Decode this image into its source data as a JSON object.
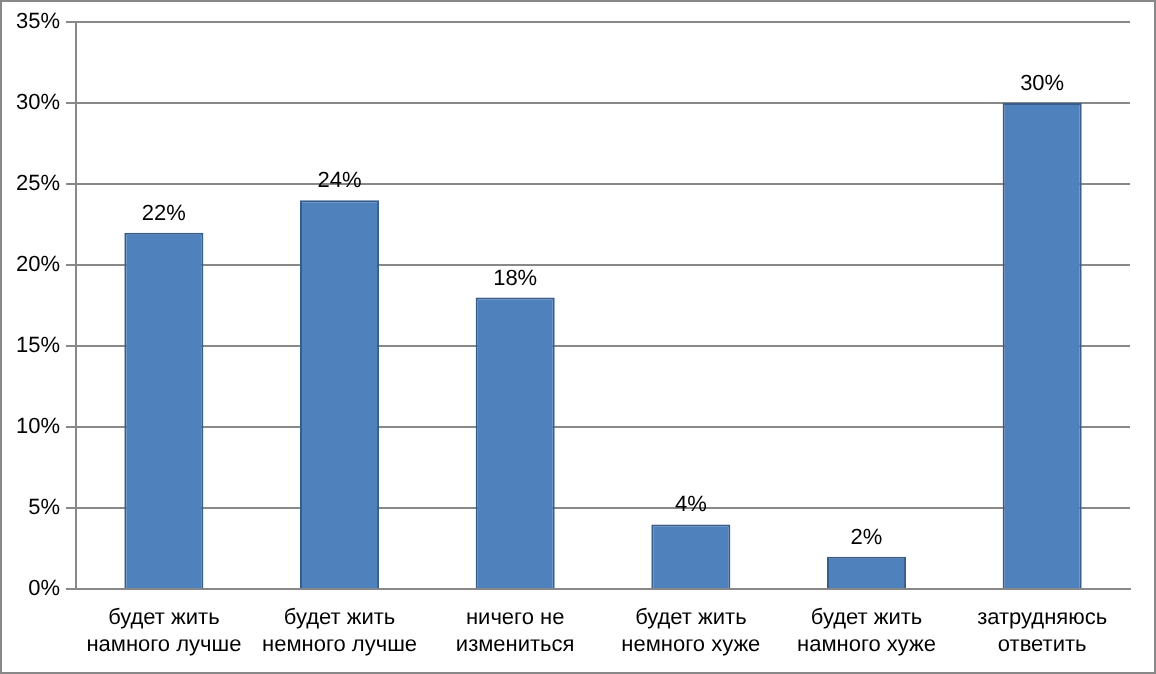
{
  "chart_data": {
    "type": "bar",
    "categories": [
      "будет жить намного лучше",
      "будет жить немного лучше",
      "ничего не измениться",
      "будет жить немного хуже",
      "будет жить намного хуже",
      "затрудняюсь ответить"
    ],
    "values": [
      22,
      24,
      18,
      4,
      2,
      30
    ],
    "value_labels": [
      "22%",
      "24%",
      "18%",
      "4%",
      "2%",
      "30%"
    ],
    "color": "#4f81bd",
    "ylim": [
      0,
      35
    ],
    "yticks": [
      {
        "value": 0,
        "label": "0%"
      },
      {
        "value": 5,
        "label": "5%"
      },
      {
        "value": 10,
        "label": "10%"
      },
      {
        "value": 15,
        "label": "15%"
      },
      {
        "value": 20,
        "label": "20%"
      },
      {
        "value": 25,
        "label": "25%"
      },
      {
        "value": 30,
        "label": "30%"
      },
      {
        "value": 35,
        "label": "35%"
      }
    ],
    "grid": "y",
    "legend": false
  }
}
